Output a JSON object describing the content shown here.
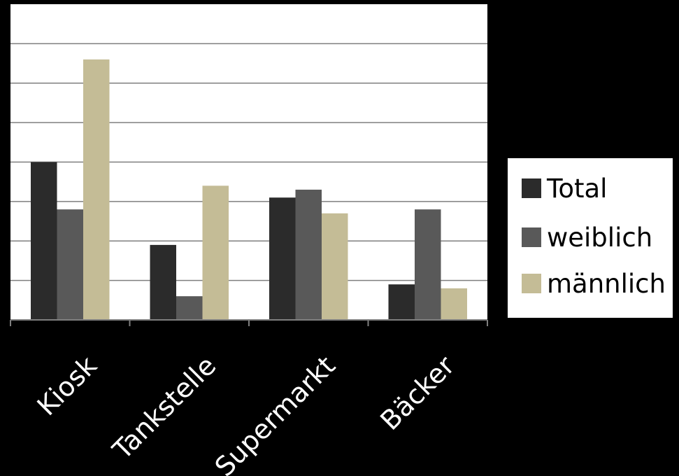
{
  "chart_data": {
    "type": "bar",
    "categories": [
      "Kiosk",
      "Tankstelle",
      "Supermarkt",
      "Bäcker"
    ],
    "series": [
      {
        "name": "Total",
        "values": [
          40,
          19,
          31,
          9
        ],
        "color": "#2b2b2b"
      },
      {
        "name": "weiblich",
        "values": [
          28,
          6,
          33,
          28
        ],
        "color": "#595959"
      },
      {
        "name": "männlich",
        "values": [
          66,
          34,
          27,
          8
        ],
        "color": "#c4bc96"
      }
    ],
    "ylim": [
      0,
      80
    ],
    "y_gridlines": true,
    "y_tick_labels_visible": false,
    "legend_position": "right",
    "colors": {
      "background": "#000000",
      "plot_area": "#ffffff",
      "gridline": "#7f7f7f",
      "axis": "#7f7f7f",
      "tick_label": "#ffffff"
    }
  }
}
